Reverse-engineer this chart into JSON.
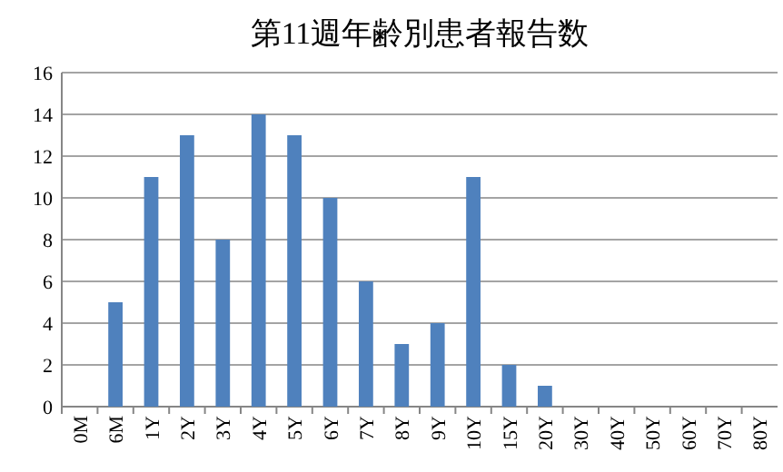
{
  "chart_data": {
    "type": "bar",
    "title": "第11週年齢別患者報告数",
    "categories": [
      "0M",
      "6M",
      "1Y",
      "2Y",
      "3Y",
      "4Y",
      "5Y",
      "6Y",
      "7Y",
      "8Y",
      "9Y",
      "10Y",
      "15Y",
      "20Y",
      "30Y",
      "40Y",
      "50Y",
      "60Y",
      "70Y",
      "80Y"
    ],
    "values": [
      0,
      5,
      11,
      13,
      8,
      14,
      13,
      10,
      6,
      3,
      4,
      11,
      2,
      1,
      0,
      0,
      0,
      0,
      0,
      0
    ],
    "color": "#4f81bd",
    "ylim": [
      0,
      16
    ],
    "yticks": [
      0,
      2,
      4,
      6,
      8,
      10,
      12,
      14,
      16
    ],
    "grid": "y"
  }
}
